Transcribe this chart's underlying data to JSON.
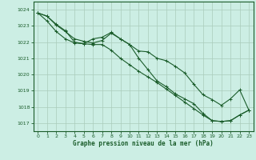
{
  "title": "Graphe pression niveau de la mer (hPa)",
  "bg_color": "#cceee4",
  "grid_color": "#aaccbb",
  "line_color": "#1a5c2a",
  "xlim": [
    -0.5,
    23.5
  ],
  "ylim": [
    1016.5,
    1024.5
  ],
  "yticks": [
    1017,
    1018,
    1019,
    1020,
    1021,
    1022,
    1023,
    1024
  ],
  "xticks": [
    0,
    1,
    2,
    3,
    4,
    5,
    6,
    7,
    8,
    9,
    10,
    11,
    12,
    13,
    14,
    15,
    16,
    17,
    18,
    19,
    20,
    21,
    22,
    23
  ],
  "line1_x": [
    0,
    1,
    2,
    3,
    4,
    5,
    6,
    7,
    8,
    9,
    10,
    11,
    12,
    13,
    14,
    15,
    16,
    17,
    18,
    19,
    20,
    21,
    22,
    23
  ],
  "line1_y": [
    1023.8,
    1023.6,
    1023.1,
    1022.7,
    1022.0,
    1021.9,
    1022.2,
    1022.3,
    1022.6,
    1022.2,
    1021.85,
    1021.0,
    1020.3,
    1019.6,
    1019.25,
    1018.8,
    1018.5,
    1018.2,
    1017.6,
    1017.15,
    1017.1,
    1017.15,
    1017.5,
    1017.8
  ],
  "line2_x": [
    0,
    1,
    2,
    3,
    4,
    5,
    6,
    7,
    8,
    9,
    10,
    11,
    12,
    13,
    14,
    15,
    16,
    17,
    18,
    19,
    20,
    21,
    22,
    23
  ],
  "line2_y": [
    1023.8,
    1023.6,
    1023.05,
    1022.65,
    1022.2,
    1022.05,
    1021.95,
    1022.1,
    1022.55,
    1022.2,
    1021.85,
    1021.45,
    1021.4,
    1021.0,
    1020.85,
    1020.5,
    1020.1,
    1019.4,
    1018.75,
    1018.45,
    1018.1,
    1018.5,
    1019.05,
    1017.8
  ],
  "line3_x": [
    0,
    1,
    2,
    3,
    4,
    5,
    6,
    7,
    8,
    9,
    10,
    11,
    12,
    13,
    14,
    15,
    16,
    17,
    18,
    19,
    20,
    21,
    22,
    23
  ],
  "line3_y": [
    1023.8,
    1023.3,
    1022.65,
    1022.2,
    1021.95,
    1021.9,
    1021.85,
    1021.85,
    1021.5,
    1021.0,
    1020.6,
    1020.2,
    1019.85,
    1019.5,
    1019.1,
    1018.7,
    1018.3,
    1017.9,
    1017.5,
    1017.15,
    1017.1,
    1017.15,
    1017.5,
    1017.8
  ]
}
